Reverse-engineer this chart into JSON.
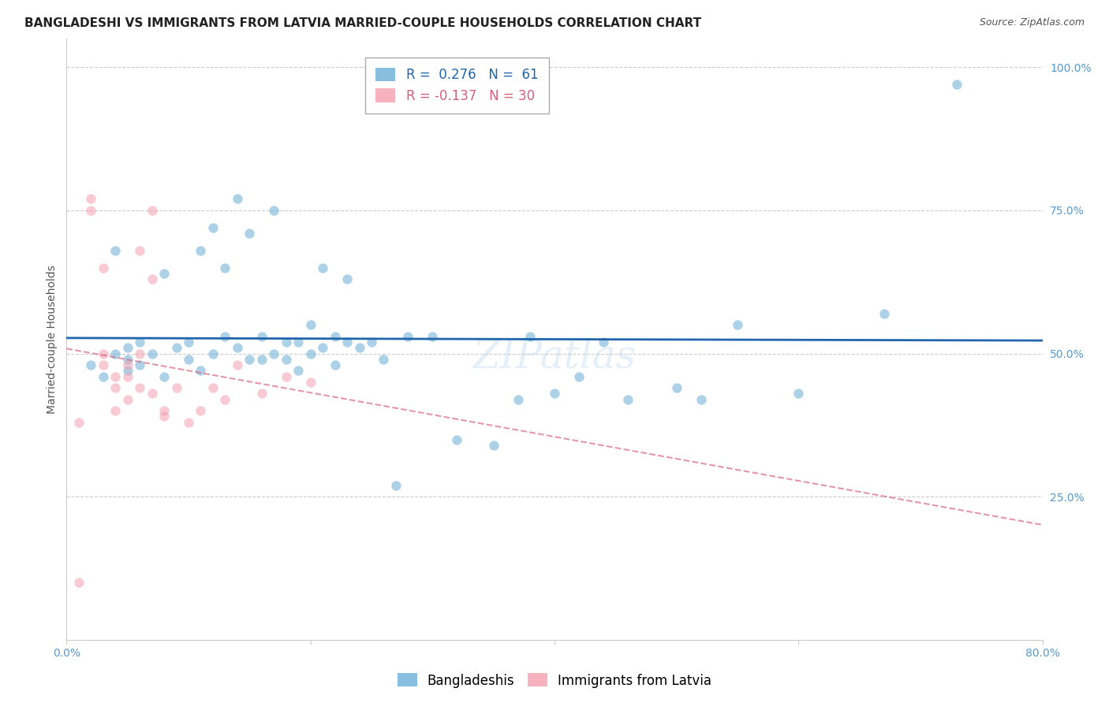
{
  "title": "BANGLADESHI VS IMMIGRANTS FROM LATVIA MARRIED-COUPLE HOUSEHOLDS CORRELATION CHART",
  "source": "Source: ZipAtlas.com",
  "ylabel": "Married-couple Households",
  "xlim": [
    0.0,
    0.8
  ],
  "ylim": [
    0.0,
    1.05
  ],
  "yticks": [
    0.0,
    0.25,
    0.5,
    0.75,
    1.0
  ],
  "ytick_labels": [
    "",
    "25.0%",
    "50.0%",
    "75.0%",
    "100.0%"
  ],
  "xticks": [
    0.0,
    0.2,
    0.4,
    0.6,
    0.8
  ],
  "xtick_labels": [
    "0.0%",
    "",
    "",
    "",
    "80.0%"
  ],
  "legend_blue_label": "Bangladeshis",
  "legend_pink_label": "Immigrants from Latvia",
  "R_blue": 0.276,
  "N_blue": 61,
  "R_pink": -0.137,
  "N_pink": 30,
  "blue_color": "#6baed6",
  "pink_color": "#f4a0b0",
  "blue_line_color": "#2166ac",
  "pink_line_color": "#d4607a",
  "watermark": "ZIPatlas",
  "blue_scatter_x": [
    0.02,
    0.03,
    0.04,
    0.04,
    0.05,
    0.05,
    0.05,
    0.06,
    0.06,
    0.07,
    0.08,
    0.08,
    0.09,
    0.1,
    0.1,
    0.11,
    0.11,
    0.12,
    0.12,
    0.13,
    0.13,
    0.14,
    0.14,
    0.15,
    0.15,
    0.16,
    0.16,
    0.17,
    0.17,
    0.18,
    0.18,
    0.19,
    0.19,
    0.2,
    0.2,
    0.21,
    0.21,
    0.22,
    0.22,
    0.23,
    0.23,
    0.24,
    0.25,
    0.26,
    0.27,
    0.28,
    0.3,
    0.32,
    0.35,
    0.37,
    0.38,
    0.4,
    0.42,
    0.44,
    0.46,
    0.5,
    0.52,
    0.55,
    0.6,
    0.67,
    0.73
  ],
  "blue_scatter_y": [
    0.48,
    0.46,
    0.5,
    0.68,
    0.47,
    0.49,
    0.51,
    0.48,
    0.52,
    0.5,
    0.46,
    0.64,
    0.51,
    0.49,
    0.52,
    0.47,
    0.68,
    0.5,
    0.72,
    0.53,
    0.65,
    0.51,
    0.77,
    0.49,
    0.71,
    0.53,
    0.49,
    0.5,
    0.75,
    0.52,
    0.49,
    0.47,
    0.52,
    0.5,
    0.55,
    0.51,
    0.65,
    0.48,
    0.53,
    0.52,
    0.63,
    0.51,
    0.52,
    0.49,
    0.27,
    0.53,
    0.53,
    0.35,
    0.34,
    0.42,
    0.53,
    0.43,
    0.46,
    0.52,
    0.42,
    0.44,
    0.42,
    0.55,
    0.43,
    0.57,
    0.97
  ],
  "pink_scatter_x": [
    0.01,
    0.01,
    0.02,
    0.02,
    0.03,
    0.03,
    0.03,
    0.04,
    0.04,
    0.04,
    0.05,
    0.05,
    0.05,
    0.06,
    0.06,
    0.06,
    0.07,
    0.07,
    0.07,
    0.08,
    0.08,
    0.09,
    0.1,
    0.11,
    0.12,
    0.13,
    0.14,
    0.16,
    0.18,
    0.2
  ],
  "pink_scatter_y": [
    0.1,
    0.38,
    0.75,
    0.77,
    0.48,
    0.5,
    0.65,
    0.46,
    0.44,
    0.4,
    0.48,
    0.46,
    0.42,
    0.5,
    0.44,
    0.68,
    0.43,
    0.63,
    0.75,
    0.4,
    0.39,
    0.44,
    0.38,
    0.4,
    0.44,
    0.42,
    0.48,
    0.43,
    0.46,
    0.45
  ],
  "title_fontsize": 11,
  "axis_label_fontsize": 10,
  "tick_fontsize": 10,
  "legend_fontsize": 12,
  "source_fontsize": 9,
  "watermark_fontsize": 36,
  "marker_size": 80,
  "marker_alpha": 0.55,
  "grid_color": "#cccccc",
  "background_color": "#ffffff",
  "tick_color": "#5599cc"
}
